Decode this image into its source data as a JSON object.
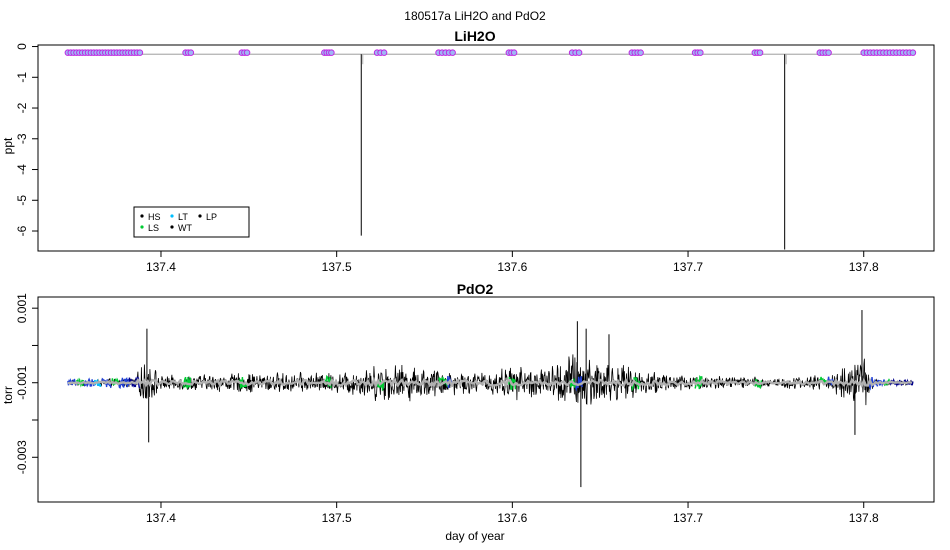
{
  "figure": {
    "title": "180517a   LiH2O and PdO2",
    "xlabel": "day of year"
  },
  "chart_data": [
    {
      "type": "line",
      "title": "LiH2O",
      "ylabel": "ppt",
      "xlim": [
        137.33,
        137.84
      ],
      "ylim": [
        -6.65,
        0.05
      ],
      "x_ticks": [
        137.4,
        137.5,
        137.6,
        137.7,
        137.8
      ],
      "x_tick_labels": [
        "137.4",
        "137.5",
        "137.6",
        "137.7",
        "137.8"
      ],
      "y_ticks": [
        0,
        -1,
        -2,
        -3,
        -4,
        -5,
        -6
      ],
      "y_tick_labels": [
        "0",
        "-1",
        "-2",
        "-3",
        "-4",
        "-5",
        "-6"
      ],
      "grid": false,
      "baseline": -0.25,
      "trace_color": "#b0b0b0",
      "spikes": [
        {
          "x": 137.514,
          "y": -6.15
        },
        {
          "x": 137.755,
          "y": -6.6
        }
      ],
      "legend": {
        "placement": "bottom-left",
        "entries": [
          {
            "label": "HS",
            "color": "#000000"
          },
          {
            "label": "LT",
            "color": "#00bfff"
          },
          {
            "label": "LP",
            "color": "#000000"
          },
          {
            "label": "LS",
            "color": "#00cc33"
          },
          {
            "label": "WT",
            "color": "#000000"
          }
        ]
      },
      "marker_style": {
        "fill": "#9fb6f5",
        "edge": "#c020e0"
      },
      "marker_groups": [
        {
          "name": "group1",
          "x_start": 137.347,
          "x_end": 137.388,
          "y": -0.2,
          "count": 26
        },
        {
          "name": "group2",
          "x_start": 137.414,
          "x_end": 137.417,
          "y": -0.2,
          "count": 3
        },
        {
          "name": "group3",
          "x_start": 137.446,
          "x_end": 137.449,
          "y": -0.2,
          "count": 3
        },
        {
          "name": "group4",
          "x_start": 137.493,
          "x_end": 137.497,
          "y": -0.2,
          "count": 4
        },
        {
          "name": "group5",
          "x_start": 137.523,
          "x_end": 137.527,
          "y": -0.2,
          "count": 3
        },
        {
          "name": "group6",
          "x_start": 137.558,
          "x_end": 137.566,
          "y": -0.2,
          "count": 5
        },
        {
          "name": "group7",
          "x_start": 137.598,
          "x_end": 137.601,
          "y": -0.2,
          "count": 3
        },
        {
          "name": "group8",
          "x_start": 137.634,
          "x_end": 137.638,
          "y": -0.2,
          "count": 3
        },
        {
          "name": "group9",
          "x_start": 137.668,
          "x_end": 137.673,
          "y": -0.2,
          "count": 4
        },
        {
          "name": "group10",
          "x_start": 137.704,
          "x_end": 137.707,
          "y": -0.2,
          "count": 3
        },
        {
          "name": "group11",
          "x_start": 137.738,
          "x_end": 137.741,
          "y": -0.2,
          "count": 3
        },
        {
          "name": "group12",
          "x_start": 137.775,
          "x_end": 137.78,
          "y": -0.2,
          "count": 4
        },
        {
          "name": "group13",
          "x_start": 137.8,
          "x_end": 137.828,
          "y": -0.2,
          "count": 16
        }
      ]
    },
    {
      "type": "line",
      "title": "PdO2",
      "ylabel": "torr",
      "xlim": [
        137.33,
        137.84
      ],
      "ylim": [
        -0.0042,
        0.0013
      ],
      "x_ticks": [
        137.4,
        137.5,
        137.6,
        137.7,
        137.8
      ],
      "x_tick_labels": [
        "137.4",
        "137.5",
        "137.6",
        "137.7",
        "137.8"
      ],
      "y_ticks": [
        0.001,
        -0.001,
        -0.003
      ],
      "y_tick_labels": [
        "0.001",
        "-0.001",
        "-0.003"
      ],
      "y_minor_ticks": [
        0.0,
        -0.002
      ],
      "grid": false,
      "x_start": 137.347,
      "x_end": 137.828,
      "center": -0.001,
      "noise_color": "#000000",
      "mean_color": "#b0b0b0",
      "noise_envelope": [
        {
          "x": 137.347,
          "amp": 8e-05
        },
        {
          "x": 137.385,
          "amp": 0.00015
        },
        {
          "x": 137.392,
          "amp": 0.00075
        },
        {
          "x": 137.4,
          "amp": 0.0002
        },
        {
          "x": 137.45,
          "amp": 0.0003
        },
        {
          "x": 137.5,
          "amp": 0.0003
        },
        {
          "x": 137.53,
          "amp": 0.0006
        },
        {
          "x": 137.56,
          "amp": 0.0004
        },
        {
          "x": 137.58,
          "amp": 0.0003
        },
        {
          "x": 137.6,
          "amp": 0.0005
        },
        {
          "x": 137.62,
          "amp": 0.00045
        },
        {
          "x": 137.637,
          "amp": 0.001
        },
        {
          "x": 137.65,
          "amp": 0.0007
        },
        {
          "x": 137.67,
          "amp": 0.0004
        },
        {
          "x": 137.7,
          "amp": 0.00025
        },
        {
          "x": 137.75,
          "amp": 0.00015
        },
        {
          "x": 137.78,
          "amp": 0.00025
        },
        {
          "x": 137.79,
          "amp": 0.0005
        },
        {
          "x": 137.8,
          "amp": 0.0008
        },
        {
          "x": 137.806,
          "amp": 0.0001
        },
        {
          "x": 137.828,
          "amp": 6e-05
        }
      ],
      "spikes": [
        {
          "x": 137.392,
          "y": 0.00045
        },
        {
          "x": 137.393,
          "y": -0.0026
        },
        {
          "x": 137.637,
          "y": 0.00065
        },
        {
          "x": 137.639,
          "y": -0.0038
        },
        {
          "x": 137.642,
          "y": 0.00045
        },
        {
          "x": 137.655,
          "y": 0.0003
        },
        {
          "x": 137.799,
          "y": 0.00095
        },
        {
          "x": 137.795,
          "y": -0.0024
        }
      ],
      "colored_segments": [
        {
          "x_start": 137.347,
          "x_end": 137.352,
          "color": "#1f3fd6"
        },
        {
          "x_start": 137.352,
          "x_end": 137.356,
          "color": "#00cc33"
        },
        {
          "x_start": 137.356,
          "x_end": 137.362,
          "color": "#1f3fd6"
        },
        {
          "x_start": 137.362,
          "x_end": 137.366,
          "color": "#00bfff"
        },
        {
          "x_start": 137.366,
          "x_end": 137.372,
          "color": "#1f3fd6"
        },
        {
          "x_start": 137.372,
          "x_end": 137.376,
          "color": "#00cc33"
        },
        {
          "x_start": 137.376,
          "x_end": 137.382,
          "color": "#1f3fd6"
        },
        {
          "x_start": 137.382,
          "x_end": 137.388,
          "color": "#00008b"
        },
        {
          "x_start": 137.413,
          "x_end": 137.417,
          "color": "#00cc33"
        },
        {
          "x_start": 137.445,
          "x_end": 137.449,
          "color": "#00cc33"
        },
        {
          "x_start": 137.493,
          "x_end": 137.497,
          "color": "#00cc33"
        },
        {
          "x_start": 137.523,
          "x_end": 137.527,
          "color": "#00cc33"
        },
        {
          "x_start": 137.558,
          "x_end": 137.563,
          "color": "#00cc33"
        },
        {
          "x_start": 137.563,
          "x_end": 137.566,
          "color": "#1f3fd6"
        },
        {
          "x_start": 137.598,
          "x_end": 137.602,
          "color": "#00cc33"
        },
        {
          "x_start": 137.633,
          "x_end": 137.636,
          "color": "#00cc33"
        },
        {
          "x_start": 137.636,
          "x_end": 137.64,
          "color": "#1f3fd6"
        },
        {
          "x_start": 137.668,
          "x_end": 137.673,
          "color": "#00cc33"
        },
        {
          "x_start": 137.704,
          "x_end": 137.708,
          "color": "#00cc33"
        },
        {
          "x_start": 137.738,
          "x_end": 137.742,
          "color": "#00cc33"
        },
        {
          "x_start": 137.775,
          "x_end": 137.779,
          "color": "#00cc33"
        },
        {
          "x_start": 137.779,
          "x_end": 137.783,
          "color": "#1f3fd6"
        },
        {
          "x_start": 137.803,
          "x_end": 137.812,
          "color": "#1f3fd6"
        },
        {
          "x_start": 137.812,
          "x_end": 137.815,
          "color": "#00cc33"
        },
        {
          "x_start": 137.815,
          "x_end": 137.828,
          "color": "#00008b"
        }
      ]
    }
  ]
}
